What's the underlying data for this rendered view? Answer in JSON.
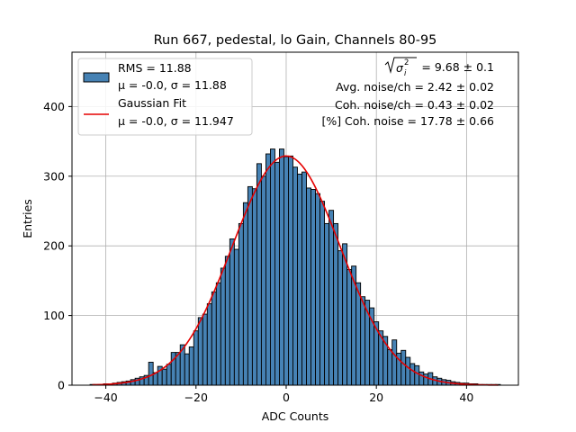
{
  "chart_data": {
    "type": "bar",
    "title": "Run 667, pedestal, lo Gain, Channels 80-95",
    "xlabel": "ADC Counts",
    "ylabel": "Entries",
    "xlim": [
      -47.5,
      51.5
    ],
    "ylim": [
      0,
      478
    ],
    "xticks": [
      -40,
      -20,
      0,
      20,
      40
    ],
    "yticks": [
      0,
      100,
      200,
      300,
      400
    ],
    "grid": true,
    "bin_width": 1,
    "bar_color": "#4682b4",
    "fit_color": "#e50000",
    "histogram": {
      "bin_centers": [
        -43,
        -42,
        -41,
        -40,
        -39,
        -38,
        -37,
        -36,
        -35,
        -34,
        -33,
        -32,
        -31,
        -30,
        -29,
        -28,
        -27,
        -26,
        -25,
        -24,
        -23,
        -22,
        -21,
        -20,
        -19,
        -18,
        -17,
        -16,
        -15,
        -14,
        -13,
        -12,
        -11,
        -10,
        -9,
        -8,
        -7,
        -6,
        -5,
        -4,
        -3,
        -2,
        -1,
        0,
        1,
        2,
        3,
        4,
        5,
        6,
        7,
        8,
        9,
        10,
        11,
        12,
        13,
        14,
        15,
        16,
        17,
        18,
        19,
        20,
        21,
        22,
        23,
        24,
        25,
        26,
        27,
        28,
        29,
        30,
        31,
        32,
        33,
        34,
        35,
        36,
        37,
        38,
        39,
        40,
        41,
        42,
        43,
        44,
        45,
        46,
        47
      ],
      "counts": [
        1,
        1,
        1,
        2,
        2,
        3,
        4,
        5,
        6,
        8,
        10,
        12,
        14,
        33,
        18,
        27,
        23,
        30,
        47,
        47,
        58,
        45,
        55,
        78,
        97,
        102,
        117,
        134,
        147,
        168,
        185,
        210,
        195,
        232,
        262,
        285,
        282,
        318,
        300,
        332,
        339,
        320,
        339,
        328,
        329,
        313,
        303,
        306,
        283,
        281,
        275,
        264,
        232,
        251,
        232,
        193,
        203,
        166,
        171,
        147,
        127,
        122,
        111,
        91,
        78,
        70,
        51,
        65,
        46,
        50,
        40,
        31,
        28,
        19,
        16,
        18,
        12,
        10,
        8,
        7,
        5,
        4,
        3,
        3,
        2,
        2,
        1,
        1,
        1,
        1,
        1
      ]
    },
    "fit_curve": {
      "name": "Gaussian Fit",
      "amplitude": 329,
      "mu": -0.0,
      "sigma": 11.947,
      "x_range": [
        -43,
        47
      ]
    },
    "legend": {
      "placement": "top-left",
      "entries": [
        {
          "line1": "RMS = 11.88",
          "line2": "μ = -0.0, σ = 11.88"
        },
        {
          "line1": "Gaussian Fit",
          "line2": "μ = -0.0, σ = 11.947"
        }
      ]
    },
    "annotations": {
      "sigma_total": "= 9.68 ± 0.1",
      "sigma_symbol": "σ",
      "sigma_subscript": "i",
      "sigma_superscript": "2",
      "avg_noise": "Avg. noise/ch = 2.42 ± 0.02",
      "coh_noise": "Coh. noise/ch = 0.43 ± 0.02",
      "coh_percent": "[%] Coh. noise = 17.78 ± 0.66"
    }
  }
}
